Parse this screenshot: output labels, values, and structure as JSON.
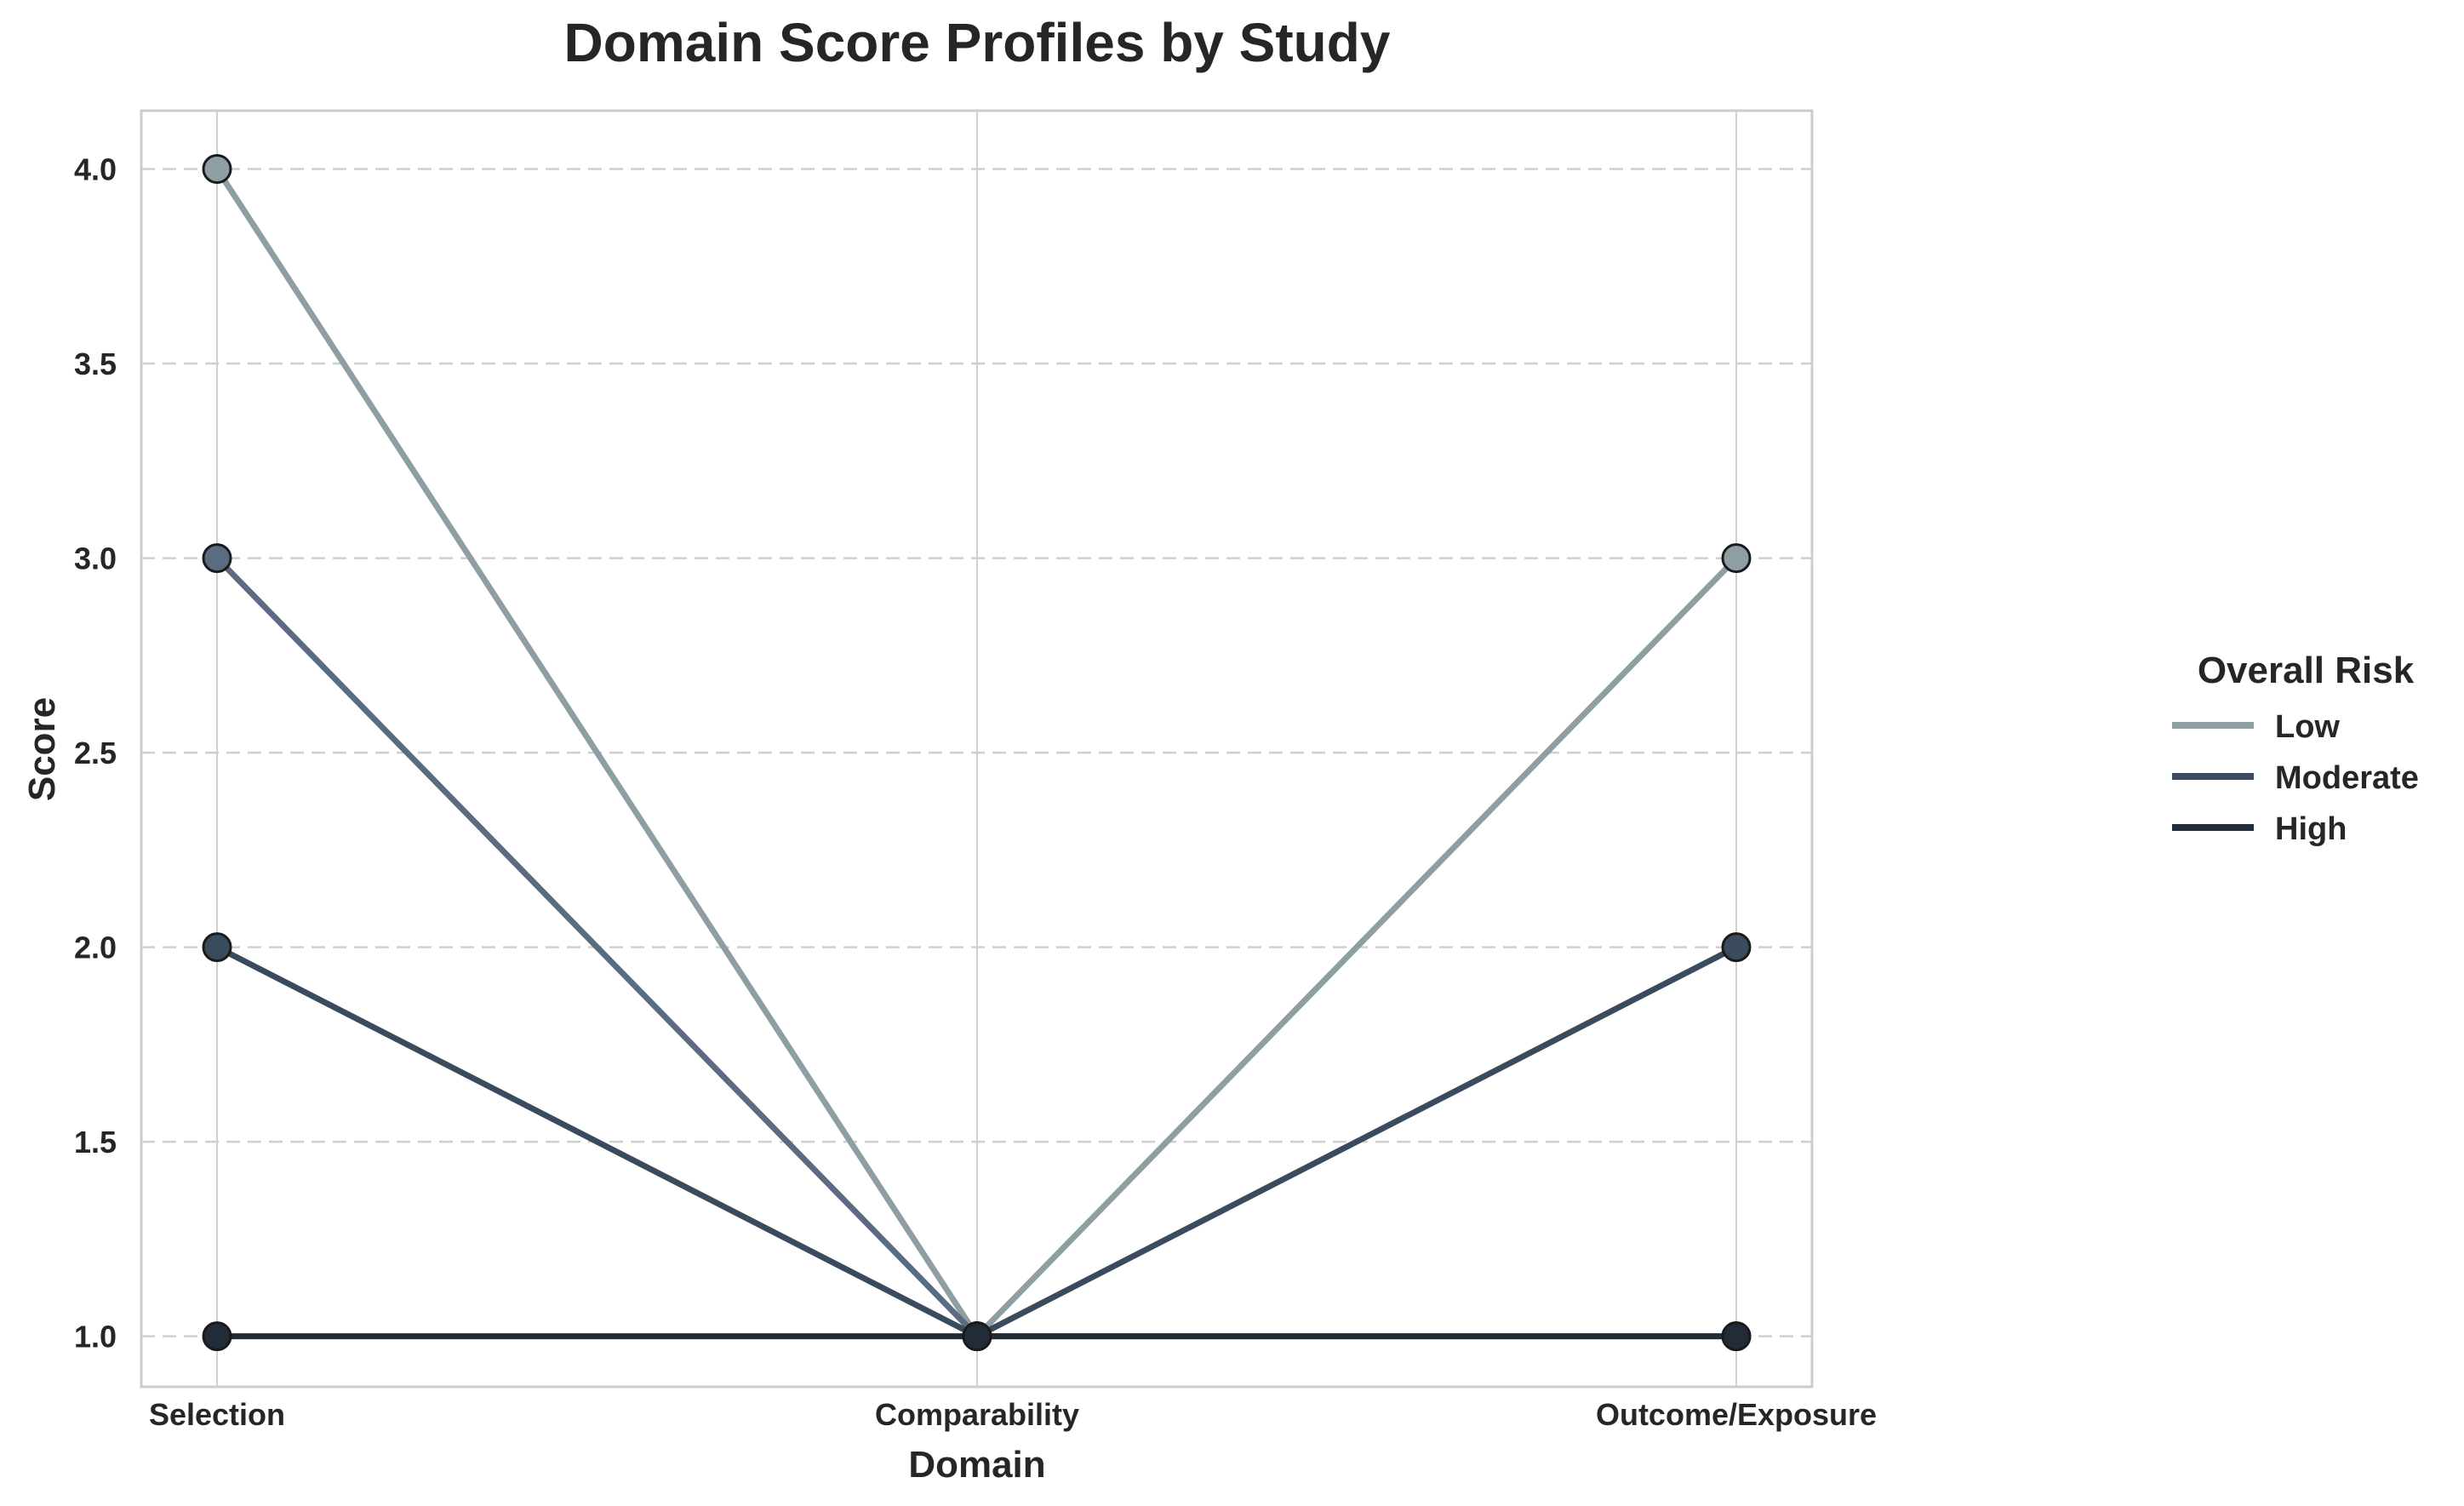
{
  "chart_data": {
    "type": "line",
    "title": "Domain Score Profiles by Study",
    "xlabel": "Domain",
    "ylabel": "Score",
    "categories": [
      "Selection",
      "Comparability",
      "Outcome/Exposure"
    ],
    "ylim": [
      0.87,
      4.15
    ],
    "yticks": [
      1.0,
      1.5,
      2.0,
      2.5,
      3.0,
      3.5,
      4.0
    ],
    "grid": true,
    "legend": {
      "title": "Overall Risk",
      "placement": "right",
      "entries": [
        {
          "label": "Low",
          "color": "#8e9ea2"
        },
        {
          "label": "Moderate",
          "color": "#3a4b5e"
        },
        {
          "label": "High",
          "color": "#222b38"
        }
      ]
    },
    "series": [
      {
        "risk": "Low",
        "values": [
          4,
          1,
          3
        ],
        "color": "#8e9ea2"
      },
      {
        "risk": "Moderate",
        "values": [
          3,
          1,
          1
        ],
        "color": "#5b6b82"
      },
      {
        "risk": "Moderate",
        "values": [
          2,
          1,
          2
        ],
        "color": "#3a4b5e"
      },
      {
        "risk": "High",
        "values": [
          1,
          1,
          1
        ],
        "color": "#222b38"
      }
    ]
  }
}
